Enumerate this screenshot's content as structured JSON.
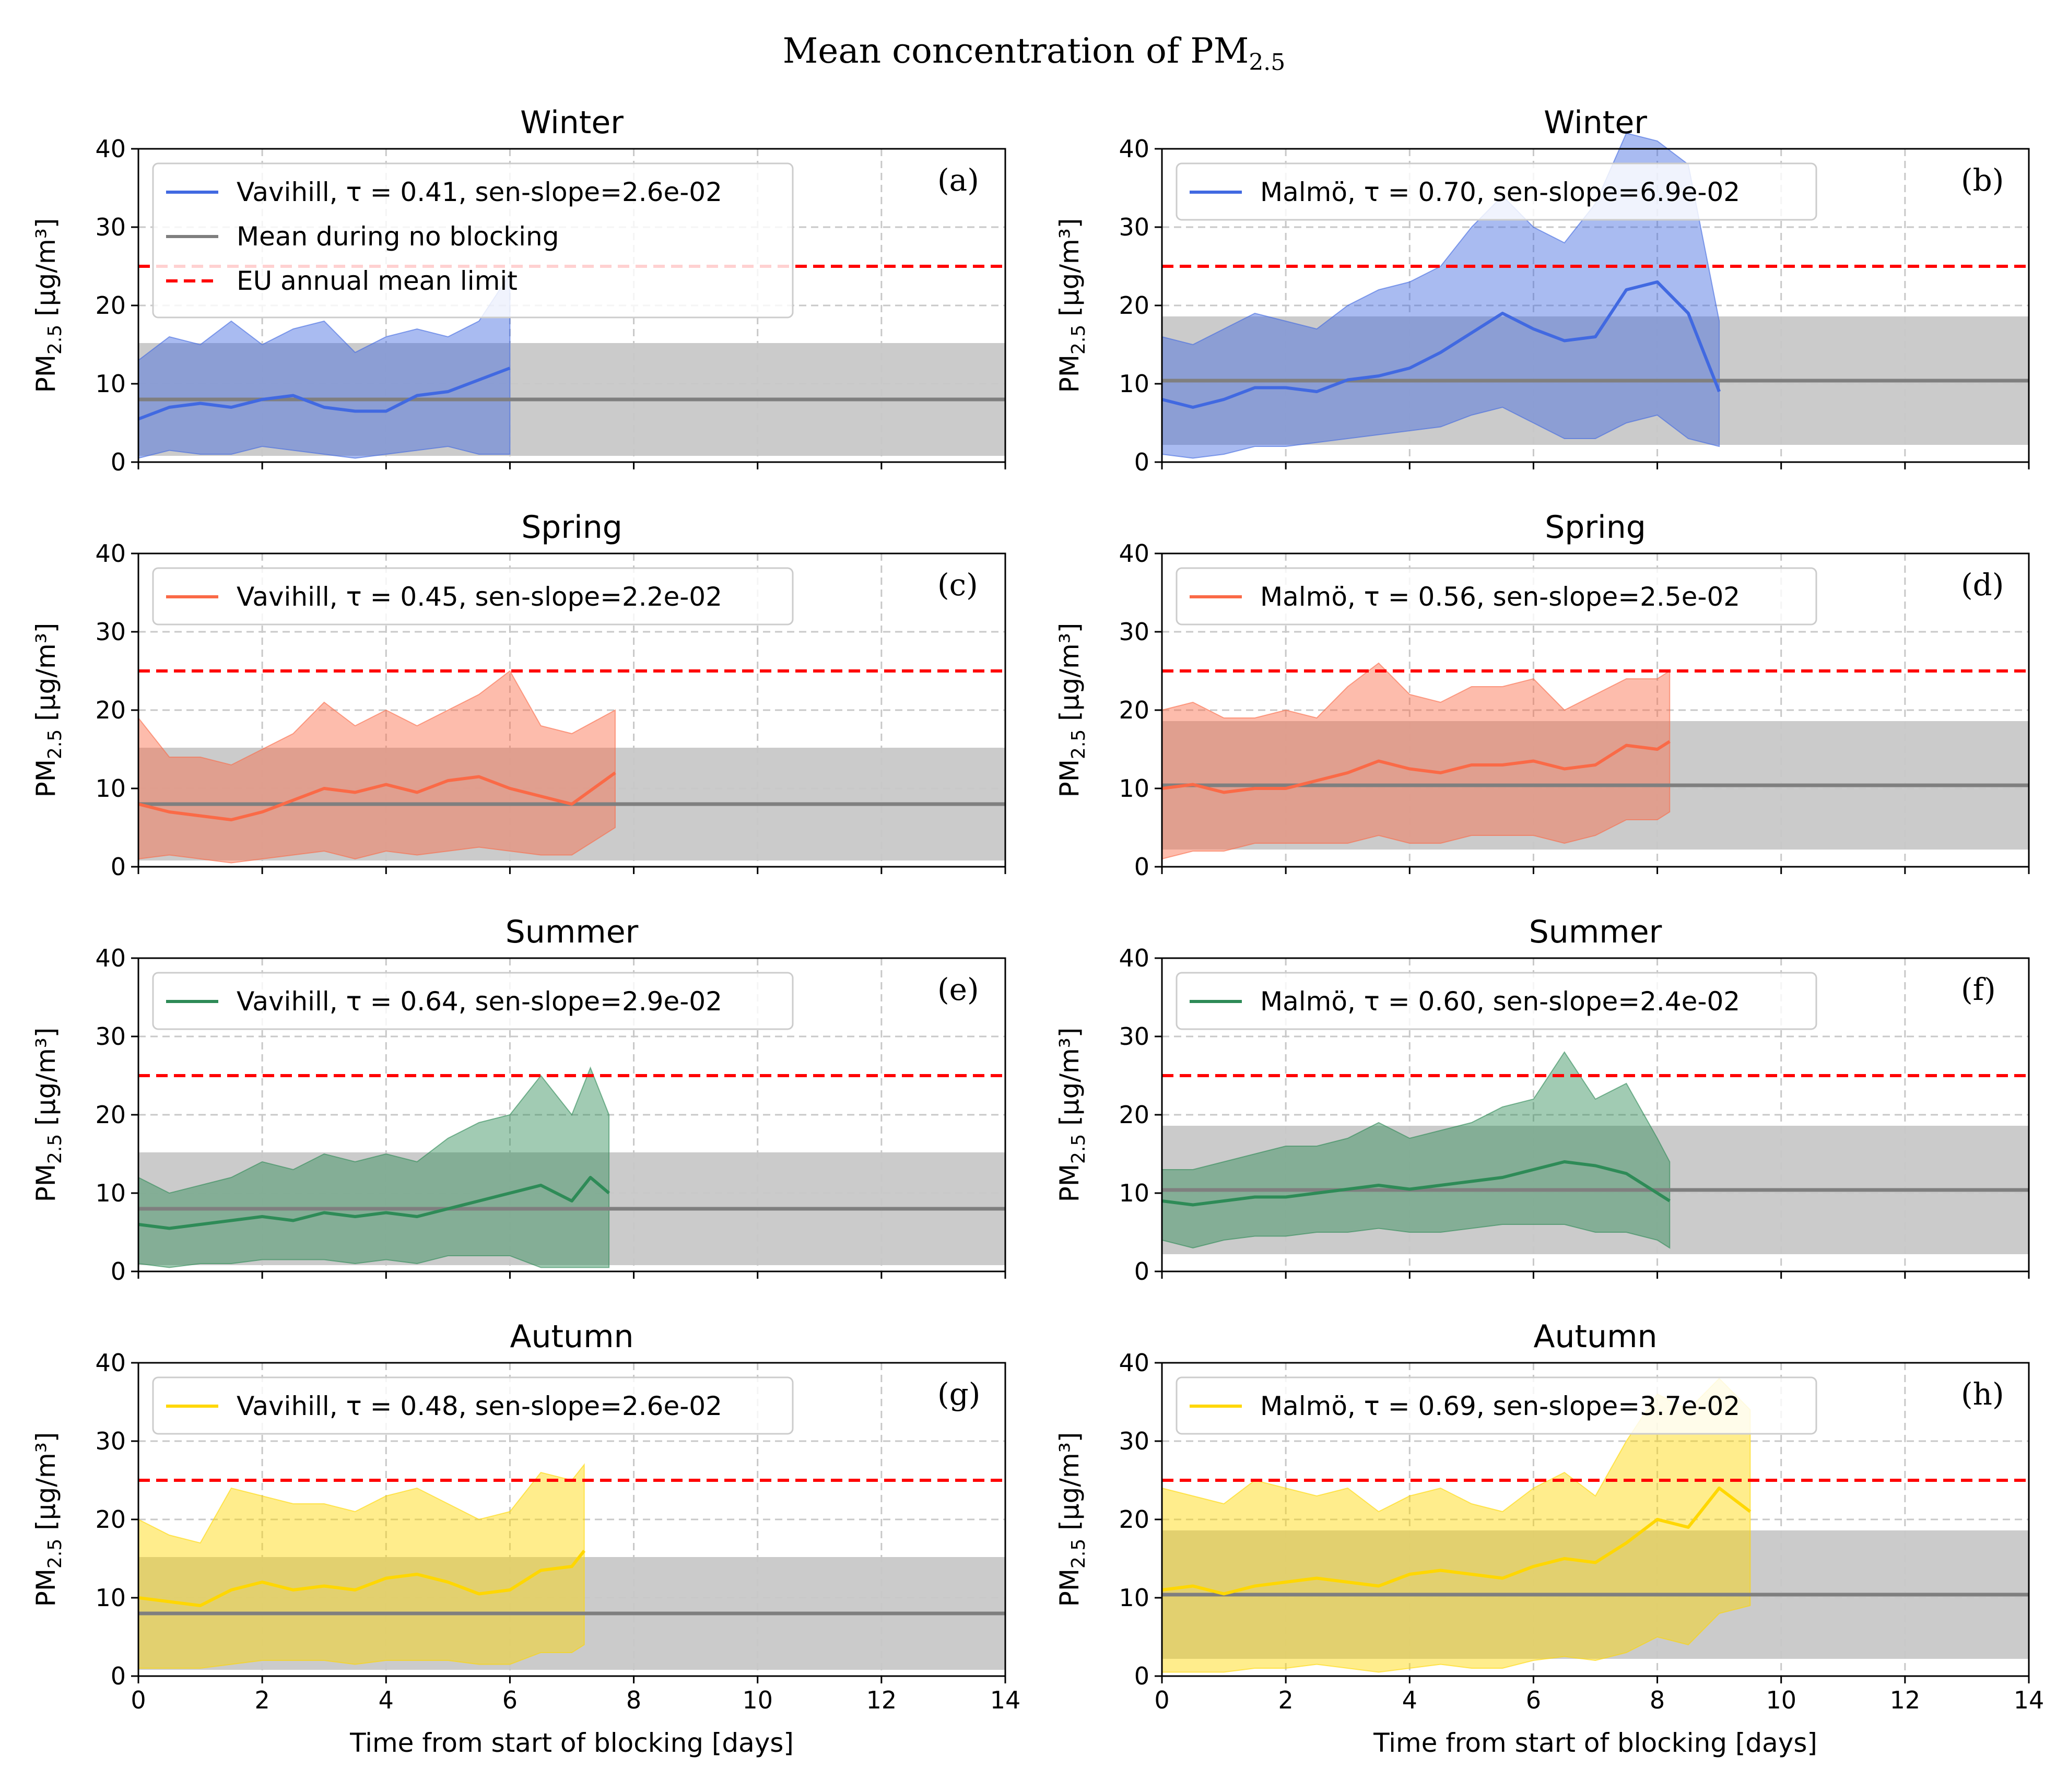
{
  "suptitle": "Mean concentration of PM",
  "suptitle_sub": "2.5",
  "chart_data": [
    {
      "type": "line",
      "panel": "(a)",
      "title": "Winter",
      "station": "Vavihill",
      "season": "winter",
      "color": "#4169e1",
      "legend": "Vavihill, τ = 0.41, sen-slope=2.6e-02",
      "legend_extra": true,
      "xlim": [
        0,
        14
      ],
      "ylim": [
        0,
        40
      ],
      "xticks": [
        0,
        2,
        4,
        6,
        8,
        10,
        12,
        14
      ],
      "yticks": [
        0,
        10,
        20,
        30,
        40
      ],
      "xlabel": "",
      "ylabel": "PM2.5 [µg/m³]",
      "no_blocking_mean": 8.0,
      "no_blocking_band": [
        0.8,
        15.2
      ],
      "eu_limit": 25,
      "x": [
        0,
        0.5,
        1,
        1.5,
        2,
        2.5,
        3,
        3.5,
        4,
        4.5,
        5,
        5.5,
        6
      ],
      "mean": [
        5.5,
        7.0,
        7.5,
        7.0,
        8.0,
        8.5,
        7.0,
        6.5,
        6.5,
        8.5,
        9.0,
        10.5,
        12.0
      ],
      "upper": [
        13,
        16,
        15,
        18,
        15,
        17,
        18,
        14,
        16,
        17,
        16,
        18,
        24
      ],
      "lower": [
        0.5,
        1.5,
        1,
        1,
        2,
        1.5,
        1,
        0.5,
        1,
        1.5,
        2,
        1,
        1
      ]
    },
    {
      "type": "line",
      "panel": "(b)",
      "title": "Winter",
      "station": "Malmö",
      "season": "winter",
      "color": "#4169e1",
      "legend": "Malmö, τ = 0.70, sen-slope=6.9e-02",
      "legend_extra": false,
      "xlim": [
        0,
        14
      ],
      "ylim": [
        0,
        40
      ],
      "xticks": [
        0,
        2,
        4,
        6,
        8,
        10,
        12,
        14
      ],
      "yticks": [
        0,
        10,
        20,
        30,
        40
      ],
      "xlabel": "",
      "ylabel": "PM2.5 [µg/m³]",
      "no_blocking_mean": 10.4,
      "no_blocking_band": [
        2.2,
        18.6
      ],
      "eu_limit": 25,
      "x": [
        0,
        0.5,
        1,
        1.5,
        2,
        2.5,
        3,
        3.5,
        4,
        4.5,
        5,
        5.5,
        6,
        6.5,
        7,
        7.5,
        8,
        8.5,
        9
      ],
      "mean": [
        8.0,
        7.0,
        8.0,
        9.5,
        9.5,
        9.0,
        10.5,
        11.0,
        12.0,
        14.0,
        16.5,
        19.0,
        17.0,
        15.5,
        16.0,
        22.0,
        23.0,
        19.0,
        9.0
      ],
      "upper": [
        16,
        15,
        17,
        19,
        18,
        17,
        20,
        22,
        23,
        25,
        30,
        34,
        30,
        28,
        33,
        42,
        41,
        38,
        18
      ],
      "lower": [
        1,
        0.5,
        1,
        2,
        2,
        2.5,
        3,
        3.5,
        4,
        4.5,
        6,
        7,
        5,
        3,
        3,
        5,
        6,
        3,
        2
      ]
    },
    {
      "type": "line",
      "panel": "(c)",
      "title": "Spring",
      "station": "Vavihill",
      "season": "spring",
      "color": "#fa6a47",
      "legend": "Vavihill, τ = 0.45, sen-slope=2.2e-02",
      "legend_extra": false,
      "xlim": [
        0,
        14
      ],
      "ylim": [
        0,
        40
      ],
      "xticks": [
        0,
        2,
        4,
        6,
        8,
        10,
        12,
        14
      ],
      "yticks": [
        0,
        10,
        20,
        30,
        40
      ],
      "xlabel": "",
      "ylabel": "PM2.5 [µg/m³]",
      "no_blocking_mean": 8.0,
      "no_blocking_band": [
        0.8,
        15.2
      ],
      "eu_limit": 25,
      "x": [
        0,
        0.5,
        1,
        1.5,
        2,
        2.5,
        3,
        3.5,
        4,
        4.5,
        5,
        5.5,
        6,
        6.5,
        7,
        7.7
      ],
      "mean": [
        8.0,
        7.0,
        6.5,
        6.0,
        7.0,
        8.5,
        10.0,
        9.5,
        10.5,
        9.5,
        11.0,
        11.5,
        10.0,
        9.0,
        8.0,
        12.0
      ],
      "upper": [
        19,
        14,
        14,
        13,
        15,
        17,
        21,
        18,
        20,
        18,
        20,
        22,
        25,
        18,
        17,
        20
      ],
      "lower": [
        1,
        1.5,
        1,
        0.5,
        1,
        1.5,
        2,
        1,
        2,
        1.5,
        2,
        2.5,
        2,
        1.5,
        1.5,
        5
      ]
    },
    {
      "type": "line",
      "panel": "(d)",
      "title": "Spring",
      "station": "Malmö",
      "season": "spring",
      "color": "#fa6a47",
      "legend": "Malmö, τ = 0.56, sen-slope=2.5e-02",
      "legend_extra": false,
      "xlim": [
        0,
        14
      ],
      "ylim": [
        0,
        40
      ],
      "xticks": [
        0,
        2,
        4,
        6,
        8,
        10,
        12,
        14
      ],
      "yticks": [
        0,
        10,
        20,
        30,
        40
      ],
      "xlabel": "",
      "ylabel": "PM2.5 [µg/m³]",
      "no_blocking_mean": 10.4,
      "no_blocking_band": [
        2.2,
        18.6
      ],
      "eu_limit": 25,
      "x": [
        0,
        0.5,
        1,
        1.5,
        2,
        2.5,
        3,
        3.5,
        4,
        4.5,
        5,
        5.5,
        6,
        6.5,
        7,
        7.5,
        8,
        8.2
      ],
      "mean": [
        10.0,
        10.5,
        9.5,
        10.0,
        10.0,
        11.0,
        12.0,
        13.5,
        12.5,
        12.0,
        13.0,
        13.0,
        13.5,
        12.5,
        13.0,
        15.5,
        15.0,
        16.0
      ],
      "upper": [
        20,
        21,
        19,
        19,
        20,
        19,
        23,
        26,
        22,
        21,
        23,
        23,
        24,
        20,
        22,
        24,
        24,
        25
      ],
      "lower": [
        1,
        2,
        2,
        3,
        3,
        3,
        3,
        4,
        3,
        3,
        4,
        4,
        4,
        3,
        4,
        6,
        6,
        7
      ]
    },
    {
      "type": "line",
      "panel": "(e)",
      "title": "Summer",
      "station": "Vavihill",
      "season": "summer",
      "color": "#2e8b57",
      "legend": "Vavihill, τ = 0.64, sen-slope=2.9e-02",
      "legend_extra": false,
      "xlim": [
        0,
        14
      ],
      "ylim": [
        0,
        40
      ],
      "xticks": [
        0,
        2,
        4,
        6,
        8,
        10,
        12,
        14
      ],
      "yticks": [
        0,
        10,
        20,
        30,
        40
      ],
      "xlabel": "",
      "ylabel": "PM2.5 [µg/m³]",
      "no_blocking_mean": 8.0,
      "no_blocking_band": [
        0.8,
        15.2
      ],
      "eu_limit": 25,
      "x": [
        0,
        0.5,
        1,
        1.5,
        2,
        2.5,
        3,
        3.5,
        4,
        4.5,
        5,
        5.5,
        6,
        6.5,
        7,
        7.3,
        7.6
      ],
      "mean": [
        6.0,
        5.5,
        6.0,
        6.5,
        7.0,
        6.5,
        7.5,
        7.0,
        7.5,
        7.0,
        8.0,
        9.0,
        10.0,
        11.0,
        9.0,
        12.0,
        10.0
      ],
      "upper": [
        12,
        10,
        11,
        12,
        14,
        13,
        15,
        14,
        15,
        14,
        17,
        19,
        20,
        25,
        20,
        26,
        20
      ],
      "lower": [
        1,
        0.5,
        1,
        1,
        1.5,
        1.5,
        1.5,
        1,
        1.5,
        1,
        2,
        2,
        2,
        0.5,
        0.5,
        0.5,
        0.5
      ]
    },
    {
      "type": "line",
      "panel": "(f)",
      "title": "Summer",
      "station": "Malmö",
      "season": "summer",
      "color": "#2e8b57",
      "legend": "Malmö, τ = 0.60, sen-slope=2.4e-02",
      "legend_extra": false,
      "xlim": [
        0,
        14
      ],
      "ylim": [
        0,
        40
      ],
      "xticks": [
        0,
        2,
        4,
        6,
        8,
        10,
        12,
        14
      ],
      "yticks": [
        0,
        10,
        20,
        30,
        40
      ],
      "xlabel": "",
      "ylabel": "PM2.5 [µg/m³]",
      "no_blocking_mean": 10.4,
      "no_blocking_band": [
        2.2,
        18.6
      ],
      "eu_limit": 25,
      "x": [
        0,
        0.5,
        1,
        1.5,
        2,
        2.5,
        3,
        3.5,
        4,
        4.5,
        5,
        5.5,
        6,
        6.5,
        7,
        7.5,
        8,
        8.2
      ],
      "mean": [
        9.0,
        8.5,
        9.0,
        9.5,
        9.5,
        10.0,
        10.5,
        11.0,
        10.5,
        11.0,
        11.5,
        12.0,
        13.0,
        14.0,
        13.5,
        12.5,
        10.0,
        9.0
      ],
      "upper": [
        13,
        13,
        14,
        15,
        16,
        16,
        17,
        19,
        17,
        18,
        19,
        21,
        22,
        28,
        22,
        24,
        17,
        14
      ],
      "lower": [
        4,
        3,
        4,
        4.5,
        4.5,
        5,
        5,
        5.5,
        5,
        5,
        5.5,
        6,
        6,
        6,
        5,
        5,
        4,
        3
      ]
    },
    {
      "type": "line",
      "panel": "(g)",
      "title": "Autumn",
      "station": "Vavihill",
      "season": "autumn",
      "color": "#ffd700",
      "legend": "Vavihill, τ = 0.48, sen-slope=2.6e-02",
      "legend_extra": false,
      "xlim": [
        0,
        14
      ],
      "ylim": [
        0,
        40
      ],
      "xticks": [
        0,
        2,
        4,
        6,
        8,
        10,
        12,
        14
      ],
      "yticks": [
        0,
        10,
        20,
        30,
        40
      ],
      "xlabel": "Time from start of blocking [days]",
      "ylabel": "PM2.5 [µg/m³]",
      "no_blocking_mean": 8.0,
      "no_blocking_band": [
        0.8,
        15.2
      ],
      "eu_limit": 25,
      "x": [
        0,
        0.5,
        1,
        1.5,
        2,
        2.5,
        3,
        3.5,
        4,
        4.5,
        5,
        5.5,
        6,
        6.5,
        7,
        7.2
      ],
      "mean": [
        10.0,
        9.5,
        9.0,
        11.0,
        12.0,
        11.0,
        11.5,
        11.0,
        12.5,
        13.0,
        12.0,
        10.5,
        11.0,
        13.5,
        14.0,
        16.0
      ],
      "upper": [
        20,
        18,
        17,
        24,
        23,
        22,
        22,
        21,
        23,
        24,
        22,
        20,
        21,
        26,
        25,
        27
      ],
      "lower": [
        1,
        1,
        1,
        1.5,
        2,
        2,
        2,
        1.5,
        2,
        2,
        2,
        1.5,
        1.5,
        3,
        3,
        4
      ]
    },
    {
      "type": "line",
      "panel": "(h)",
      "title": "Autumn",
      "station": "Malmö",
      "season": "autumn",
      "color": "#ffd700",
      "legend": "Malmö, τ = 0.69, sen-slope=3.7e-02",
      "legend_extra": false,
      "xlim": [
        0,
        14
      ],
      "ylim": [
        0,
        40
      ],
      "xticks": [
        0,
        2,
        4,
        6,
        8,
        10,
        12,
        14
      ],
      "yticks": [
        0,
        10,
        20,
        30,
        40
      ],
      "xlabel": "Time from start of blocking [days]",
      "ylabel": "PM2.5 [µg/m³]",
      "no_blocking_mean": 10.4,
      "no_blocking_band": [
        2.2,
        18.6
      ],
      "eu_limit": 25,
      "x": [
        0,
        0.5,
        1,
        1.5,
        2,
        2.5,
        3,
        3.5,
        4,
        4.5,
        5,
        5.5,
        6,
        6.5,
        7,
        7.5,
        8,
        8.5,
        9,
        9.5
      ],
      "mean": [
        11.0,
        11.5,
        10.5,
        11.5,
        12.0,
        12.5,
        12.0,
        11.5,
        13.0,
        13.5,
        13.0,
        12.5,
        14.0,
        15.0,
        14.5,
        17.0,
        20.0,
        19.0,
        24.0,
        21.0
      ],
      "upper": [
        24,
        23,
        22,
        25,
        24,
        23,
        24,
        21,
        23,
        24,
        22,
        21,
        24,
        26,
        23,
        30,
        36,
        34,
        38,
        34
      ],
      "lower": [
        0.5,
        0.5,
        0.5,
        1,
        1,
        1.5,
        1,
        0.5,
        1,
        1.5,
        1,
        1,
        2,
        2.5,
        2,
        3,
        5,
        4,
        8,
        9
      ]
    }
  ],
  "legend_mean_label": "Mean during no blocking",
  "legend_eu_label": "EU annual mean limit",
  "colors": {
    "mean_line": "#7f7f7f",
    "band": "#c8c8c8",
    "eu_limit": "#ff0000",
    "grid": "#c8c8c8"
  }
}
